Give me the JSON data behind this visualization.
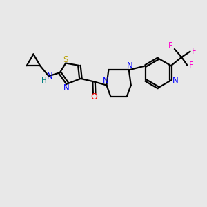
{
  "bg_color": "#e8e8e8",
  "atom_colors": {
    "S": "#b8a000",
    "N": "#0000ff",
    "O": "#ff0000",
    "F": "#ff00cc",
    "H": "#008080",
    "C": "#000000"
  },
  "bond_color": "#000000",
  "line_width": 1.6,
  "dbo": 0.06
}
